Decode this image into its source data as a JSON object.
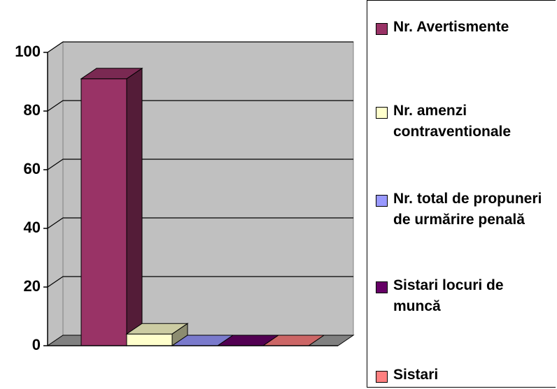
{
  "chart_data": {
    "type": "bar3d",
    "series": [
      {
        "name": "Nr. Avertismente",
        "color": "#993366",
        "values": [
          91
        ]
      },
      {
        "name": "Nr. amenzi contraventionale",
        "color": "#ffffcc",
        "values": [
          4
        ]
      },
      {
        "name": "Nr. total de propuneri de urmărire penală",
        "color": "#9999ff",
        "values": [
          0
        ]
      },
      {
        "name": "Sistari locuri de muncă",
        "color": "#660066",
        "values": [
          0
        ]
      },
      {
        "name": "Sistari",
        "color": "#ff8080",
        "values": [
          0
        ]
      }
    ],
    "ylim": [
      0,
      100
    ],
    "yticks": [
      0,
      20,
      40,
      60,
      80,
      100
    ],
    "grid": true,
    "legend": "right"
  }
}
